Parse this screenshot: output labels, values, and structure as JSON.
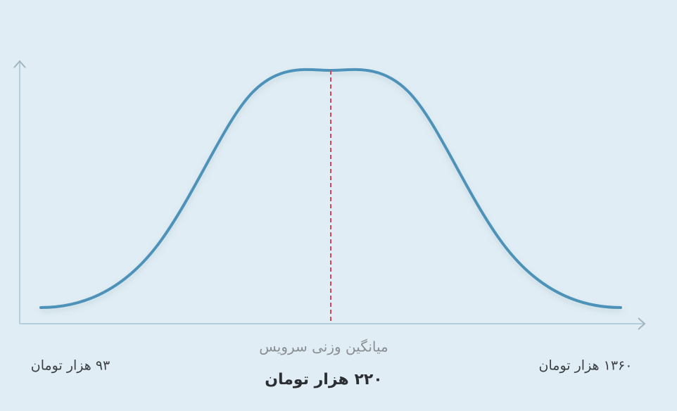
{
  "mean_label": "میانگین وزنی سرویس",
  "mean_value": "۲۲۰ هزار تومان",
  "min_value": "۹۳ هزار تومان",
  "max_value": "۱۳۶۰ هزار تومان"
}
